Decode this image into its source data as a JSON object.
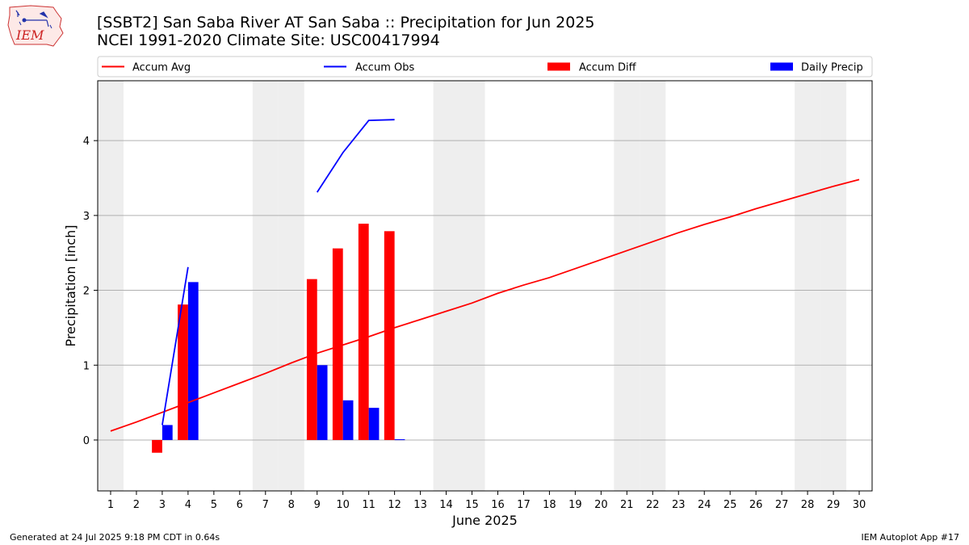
{
  "title": "[SSBT2] San Saba River  AT San Saba :: Precipitation for Jun 2025",
  "subtitle": "NCEI 1991-2020 Climate Site: USC00417994",
  "logo_text": "IEM",
  "footer_left": "Generated at 24 Jul 2025 9:18 PM CDT in 0.64s",
  "footer_right": "IEM Autoplot App #17",
  "colors": {
    "accum_avg": "#ff0000",
    "accum_obs": "#0000ff",
    "accum_diff": "#ff0000",
    "daily_precip": "#0000ff",
    "weekend_shade": "#eeeeee",
    "grid": "#b0b0b0"
  },
  "chart_data": {
    "type": "bar",
    "xlabel": "June 2025",
    "ylabel": "Precipitation [inch]",
    "xlim": [
      0.5,
      30.5
    ],
    "ylim": [
      -0.68,
      4.8
    ],
    "grid": "horizontal",
    "legend_position": "top",
    "x_ticks": [
      1,
      2,
      3,
      4,
      5,
      6,
      7,
      8,
      9,
      10,
      11,
      12,
      13,
      14,
      15,
      16,
      17,
      18,
      19,
      20,
      21,
      22,
      23,
      24,
      25,
      26,
      27,
      28,
      29,
      30
    ],
    "y_ticks": [
      0,
      1,
      2,
      3,
      4
    ],
    "weekend_days": [
      1,
      7,
      8,
      14,
      15,
      21,
      22,
      28,
      29
    ],
    "series": [
      {
        "name": "Accum Avg",
        "kind": "line",
        "x": [
          1,
          2,
          3,
          4,
          5,
          6,
          7,
          8,
          9,
          10,
          11,
          12,
          13,
          14,
          15,
          16,
          17,
          18,
          19,
          20,
          21,
          22,
          23,
          24,
          25,
          26,
          27,
          28,
          29,
          30
        ],
        "values": [
          0.12,
          0.24,
          0.37,
          0.5,
          0.63,
          0.76,
          0.89,
          1.03,
          1.16,
          1.27,
          1.38,
          1.5,
          1.61,
          1.72,
          1.83,
          1.96,
          2.07,
          2.17,
          2.29,
          2.41,
          2.53,
          2.65,
          2.77,
          2.88,
          2.98,
          3.09,
          3.19,
          3.29,
          3.39,
          3.48
        ]
      },
      {
        "name": "Accum Obs",
        "kind": "line",
        "segments": [
          {
            "x": [
              3,
              4
            ],
            "values": [
              0.2,
              2.31
            ]
          },
          {
            "x": [
              9,
              10,
              11,
              12
            ],
            "values": [
              3.31,
              3.84,
              4.27,
              4.28
            ]
          }
        ]
      },
      {
        "name": "Accum Diff",
        "kind": "bar",
        "x": [
          3,
          4,
          9,
          10,
          11,
          12
        ],
        "values": [
          -0.17,
          1.81,
          2.15,
          2.56,
          2.89,
          2.79
        ]
      },
      {
        "name": "Daily Precip",
        "kind": "bar",
        "x": [
          3,
          4,
          9,
          10,
          11,
          12
        ],
        "values": [
          0.2,
          2.11,
          1.0,
          0.53,
          0.43,
          0.01
        ]
      }
    ]
  }
}
